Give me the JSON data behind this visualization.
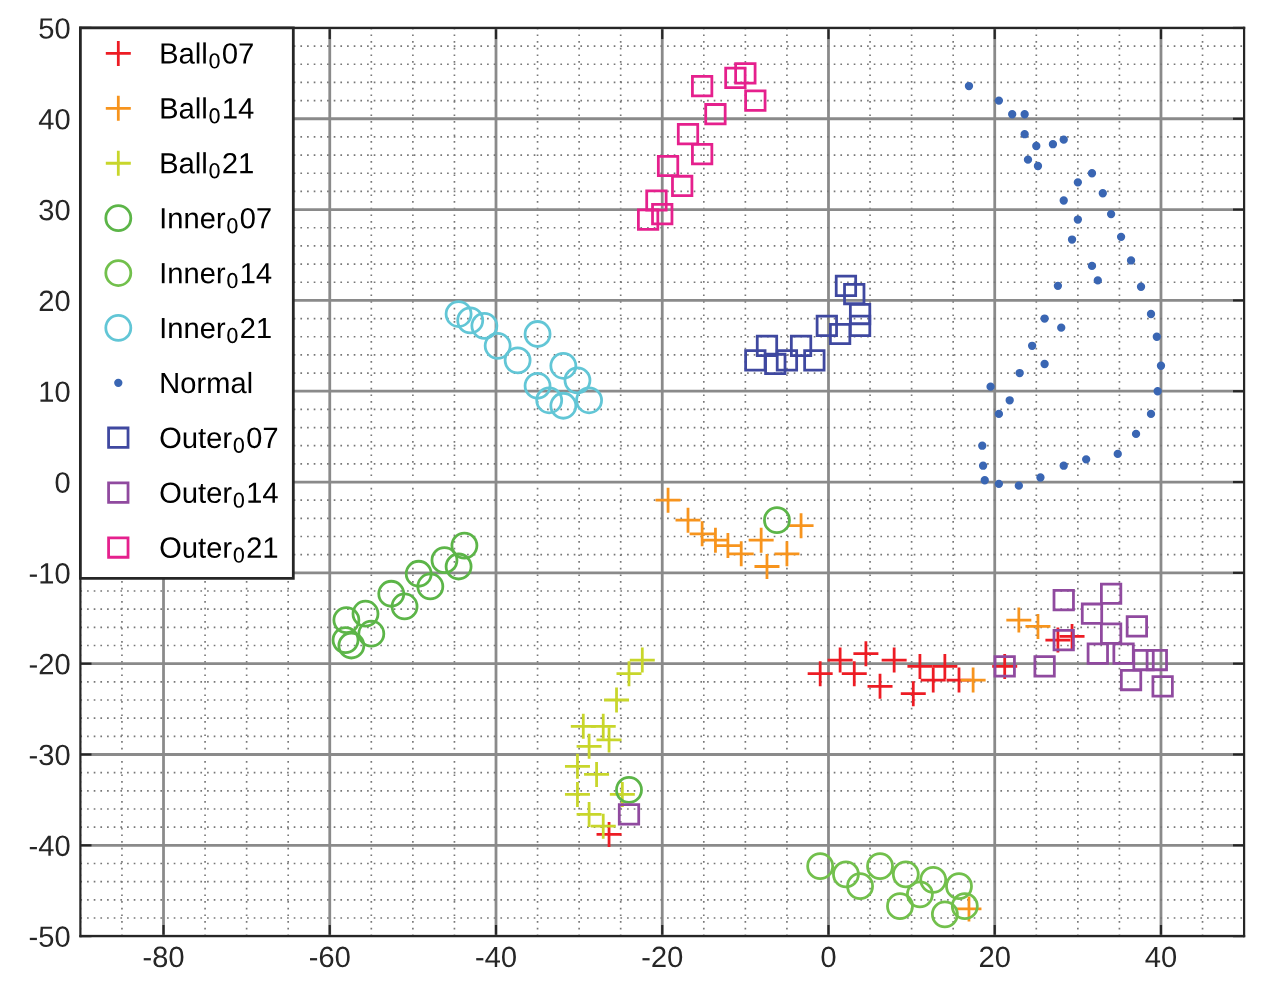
{
  "chart_data": {
    "type": "scatter",
    "xlim": [
      -90,
      50
    ],
    "ylim": [
      -50,
      50
    ],
    "xticks": [
      -80,
      -60,
      -40,
      -20,
      0,
      20,
      40
    ],
    "yticks": [
      -50,
      -40,
      -30,
      -20,
      -10,
      0,
      10,
      20,
      30,
      40,
      50
    ],
    "grid": true,
    "legend": "top left",
    "series": [
      {
        "name": "Ball$_{0}$07",
        "color": "#ed1c24",
        "marker": "cross",
        "x": [
          -1,
          1.4,
          4.5,
          7.9,
          11,
          14,
          15.7,
          10.2,
          6.2,
          3.1,
          12.6,
          21.2,
          27.6,
          29.3,
          -26.4
        ],
        "values": [
          -21.1,
          -19.6,
          -18.9,
          -19.6,
          -20.3,
          -20.3,
          -21.8,
          -23.3,
          -22.5,
          -21.1,
          -21.8,
          -20.3,
          -17.4,
          -17,
          -38.8
        ]
      },
      {
        "name": "Ball$_{0}$14",
        "color": "#f7941d",
        "marker": "cross",
        "x": [
          -19.3,
          -16.9,
          -13.6,
          -10.5,
          -7.4,
          -5,
          -3.3,
          -8.1,
          -15.2,
          -12.1,
          22.9,
          25.2,
          17.4,
          16.9
        ],
        "values": [
          -2,
          -4.2,
          -6.4,
          -7.9,
          -9.3,
          -7.9,
          -4.8,
          -6.4,
          -5.7,
          -7,
          -15.2,
          -15.9,
          -21.8,
          -47
        ]
      },
      {
        "name": "Ball$_{0}$21",
        "color": "#c8d62b",
        "marker": "cross",
        "x": [
          -22.4,
          -24,
          -25.5,
          -27.1,
          -28.8,
          -30.2,
          -30.2,
          -28.8,
          -27.1,
          -27.9,
          -26.4,
          -29.5,
          -24.8
        ],
        "values": [
          -19.6,
          -21.1,
          -24,
          -26.9,
          -29.1,
          -31.3,
          -34.4,
          -36.6,
          -37.9,
          -32.2,
          -28.4,
          -26.9,
          -34.4
        ]
      },
      {
        "name": "Inner$_{0}$07",
        "color": "#5cb548",
        "marker": "circle",
        "x": [
          -43.8,
          -46.2,
          -49.3,
          -52.6,
          -55.7,
          -58.1,
          -58,
          -55,
          -51,
          -47.9,
          -44.5,
          -57.4,
          -24,
          -6.2
        ],
        "values": [
          -7,
          -8.6,
          -10.1,
          -12.3,
          -14.5,
          -17.4,
          -15.2,
          -16.7,
          -13.7,
          -11.5,
          -9.3,
          -18,
          -33.9,
          -4.2
        ]
      },
      {
        "name": "Inner$_{0}$14",
        "color": "#72c04c",
        "marker": "circle",
        "x": [
          -1,
          2.1,
          6.2,
          9.3,
          12.6,
          15.7,
          16.4,
          14,
          8.6,
          3.8,
          11
        ],
        "values": [
          -42.3,
          -43.2,
          -42.3,
          -43.2,
          -43.8,
          -44.5,
          -46.7,
          -47.6,
          -46.7,
          -44.5,
          -45.4
        ]
      },
      {
        "name": "Inner$_{0}$21",
        "color": "#62c6d6",
        "marker": "circle",
        "x": [
          -44.5,
          -41.4,
          -35,
          -37.4,
          -31.9,
          -33.6,
          -28.8,
          -39.8,
          -30.2,
          -35,
          -43.1,
          -31.9
        ],
        "values": [
          18.5,
          17.2,
          16.3,
          13.4,
          12.8,
          9,
          9,
          15,
          11.2,
          10.6,
          17.8,
          8.4
        ]
      },
      {
        "name": "Normal",
        "color": "#3a66b3",
        "marker": "dot",
        "x": [
          16.9,
          20.5,
          23.6,
          28.3,
          31.7,
          34,
          36.4,
          38.8,
          40,
          38.8,
          34.8,
          28.3,
          22.9,
          18.8,
          18.6,
          20.5,
          24.5,
          27.6,
          29.3,
          28.3,
          25.2,
          23.6,
          22.1,
          30,
          32.4,
          31.7,
          18.5,
          19.5,
          26,
          30,
          33,
          35.2,
          37.6,
          39.5,
          39.6,
          37,
          31,
          25.5,
          20.5,
          21.8,
          23,
          26,
          28,
          25,
          24,
          27
        ],
        "values": [
          43.6,
          42,
          40.5,
          37.7,
          34,
          29.5,
          24.4,
          18.5,
          12.8,
          7.5,
          3.1,
          1.8,
          -0.4,
          0.2,
          1.8,
          7.5,
          15,
          21.6,
          26.7,
          31,
          34.8,
          38.3,
          40.5,
          28.9,
          22.2,
          23.8,
          4,
          10.5,
          18,
          33,
          31.8,
          27,
          21.5,
          16,
          10,
          5.3,
          2.5,
          0.5,
          -0.2,
          9,
          12,
          13,
          17,
          37,
          35.5,
          37.2
        ]
      },
      {
        "name": "Outer$_{0}$07",
        "color": "#3f48a0",
        "marker": "square",
        "x": [
          -8.8,
          -6.4,
          -3.3,
          -0.2,
          3.1,
          3.8,
          3.8,
          -7.4,
          -1.7,
          1.4,
          -5,
          2.1
        ],
        "values": [
          13.4,
          13,
          15,
          17.2,
          20.7,
          18.5,
          17.2,
          15,
          13.4,
          16.3,
          13.4,
          21.6
        ]
      },
      {
        "name": "Outer$_{0}$14",
        "color": "#904a9f",
        "marker": "square",
        "x": [
          28.3,
          34,
          31.7,
          34,
          35.5,
          37.9,
          40.2,
          39.5,
          37.1,
          32.4,
          28.3,
          26,
          21.2,
          36.4,
          -24
        ],
        "values": [
          -13,
          -12.3,
          -14.5,
          -16.7,
          -18.9,
          -19.6,
          -22.5,
          -19.6,
          -15.9,
          -18.9,
          -17.4,
          -20.3,
          -20.3,
          -21.8,
          -36.6
        ]
      },
      {
        "name": "Outer$_{0}$21",
        "color": "#e5208d",
        "marker": "square",
        "x": [
          -11.2,
          -8.8,
          -15.2,
          -16.9,
          -19.3,
          -20.7,
          -21.7,
          -13.6,
          -15.2,
          -17.6,
          -20,
          -10
        ],
        "values": [
          44.5,
          42,
          43.6,
          38.3,
          34.8,
          31,
          28.9,
          40.5,
          36.1,
          32.6,
          29.5,
          45
        ]
      }
    ]
  }
}
